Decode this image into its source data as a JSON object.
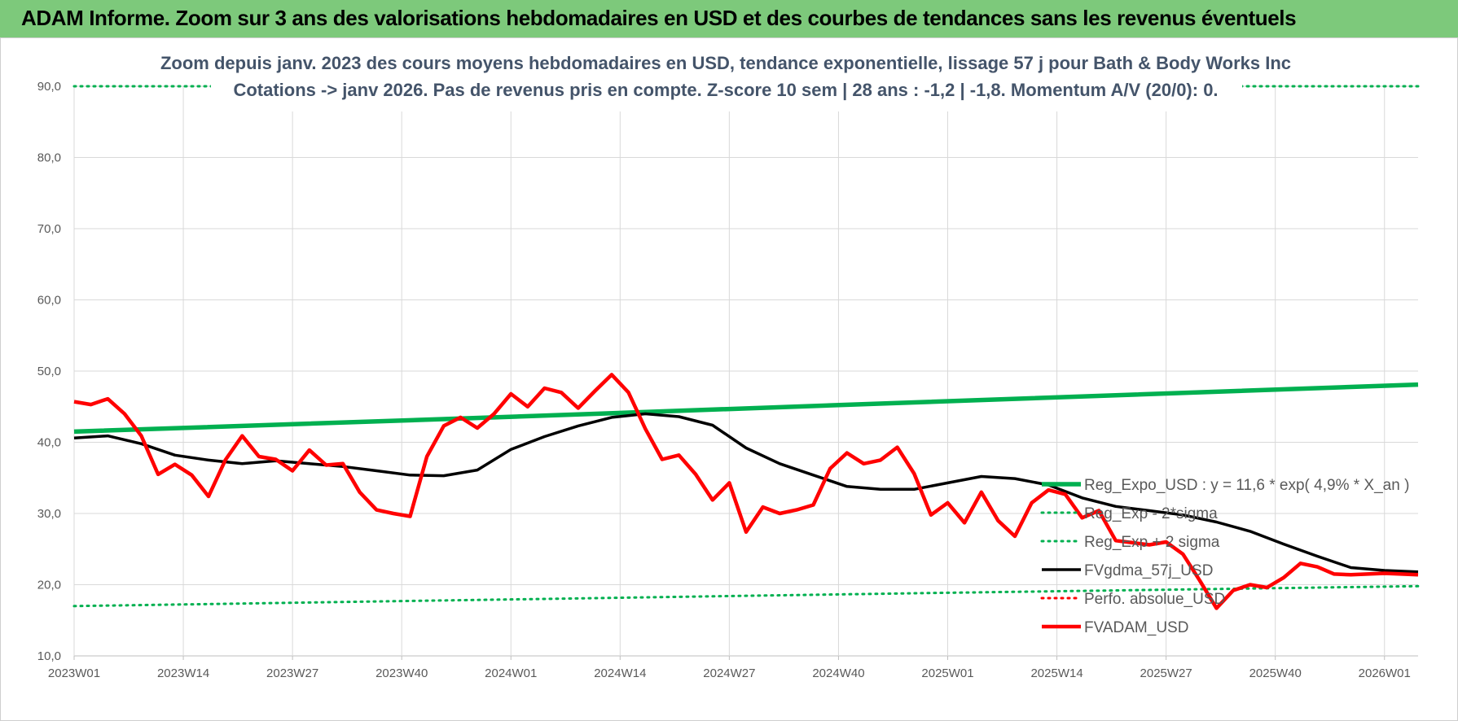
{
  "header": {
    "title": "ADAM Informe. Zoom sur 3 ans des valorisations hebdomadaires en USD et des courbes de tendances sans les revenus éventuels"
  },
  "chart_data": {
    "type": "line",
    "title": "Zoom depuis janv. 2023 des cours moyens hebdomadaires en USD, tendance exponentielle, lissage 57 j pour Bath & Body Works Inc",
    "subtitle": "Cotations -> janv 2026. Pas de revenus pris en compte. Z-score 10 sem | 28 ans : -1,2 | -1,8. Momentum A/V (20/0): 0.",
    "xlabel": "",
    "ylabel": "",
    "ylim": [
      10,
      90
    ],
    "yticks": [
      "10,0",
      "20,0",
      "30,0",
      "40,0",
      "50,0",
      "60,0",
      "70,0",
      "80,0",
      "90,0"
    ],
    "xticks": [
      "2023W01",
      "2023W14",
      "2023W27",
      "2023W40",
      "2024W01",
      "2024W14",
      "2024W27",
      "2024W40",
      "2025W01",
      "2025W14",
      "2025W27",
      "2025W40",
      "2026W01"
    ],
    "grid": true,
    "legend_position": "right",
    "colors": {
      "reg_expo": "#00b050",
      "sigma_bands": "#00b050",
      "fvgdma": "#000000",
      "perfo": "#ff0000",
      "fvadam": "#ff0000"
    },
    "series": [
      {
        "name": "Reg_Expo_USD : y = 11,6 * exp( 4,9% *  X_an )",
        "style": "solid-thick",
        "week_index": [
          0,
          50,
          100,
          160
        ],
        "values": [
          41.5,
          43.5,
          45.6,
          48.1
        ]
      },
      {
        "name": "Reg_Exp - 2*sigma",
        "style": "dotted",
        "week_index": [
          0,
          40,
          80,
          120,
          160
        ],
        "values": [
          90.0,
          90.0,
          90.0,
          90.0,
          90.0
        ]
      },
      {
        "name": "Reg_Exp + 2 sigma",
        "style": "dotted",
        "week_index": [
          0,
          50,
          100,
          160
        ],
        "values": [
          17.0,
          17.9,
          18.8,
          19.8
        ]
      },
      {
        "name": "FVgdma_57j_USD",
        "style": "solid",
        "week_index": [
          0,
          4,
          8,
          12,
          16,
          20,
          24,
          28,
          32,
          36,
          40,
          44,
          48,
          52,
          56,
          60,
          64,
          68,
          72,
          76,
          80,
          84,
          88,
          92,
          96,
          100,
          104,
          108,
          112,
          116,
          120,
          124,
          128,
          132,
          136,
          140,
          144,
          148,
          152,
          156,
          160
        ],
        "values": [
          40.6,
          40.9,
          39.8,
          38.2,
          37.5,
          37.0,
          37.4,
          37.0,
          36.6,
          36.0,
          35.4,
          35.3,
          36.1,
          39.0,
          40.8,
          42.3,
          43.5,
          44.0,
          43.6,
          42.4,
          39.2,
          37.0,
          35.4,
          33.8,
          33.4,
          33.4,
          34.3,
          35.2,
          34.9,
          34.0,
          32.2,
          31.0,
          30.4,
          29.8,
          28.8,
          27.5,
          25.7,
          24.0,
          22.4,
          22.0,
          21.8
        ]
      },
      {
        "name": "Perfo. absolue_USD",
        "style": "dotted",
        "week_index": [],
        "values": []
      },
      {
        "name": "FVADAM_USD",
        "style": "solid-thick",
        "week_index": [
          0,
          2,
          4,
          6,
          8,
          10,
          12,
          14,
          16,
          18,
          20,
          22,
          24,
          26,
          28,
          30,
          32,
          34,
          36,
          38,
          40,
          42,
          44,
          46,
          48,
          50,
          52,
          54,
          56,
          58,
          60,
          62,
          64,
          66,
          68,
          70,
          72,
          74,
          76,
          78,
          80,
          82,
          84,
          86,
          88,
          90,
          92,
          94,
          96,
          98,
          100,
          102,
          104,
          106,
          108,
          110,
          112,
          114,
          116,
          118,
          120,
          122,
          124,
          126,
          128,
          130,
          132,
          134,
          136,
          138,
          140,
          142,
          144,
          146,
          148,
          150,
          152,
          154,
          156,
          158,
          160
        ],
        "values": [
          45.7,
          45.3,
          46.1,
          44.0,
          40.9,
          35.5,
          36.9,
          35.4,
          32.4,
          37.5,
          40.9,
          38.0,
          37.6,
          36.0,
          38.9,
          36.8,
          37.0,
          33.0,
          30.5,
          30.0,
          29.6,
          38.0,
          42.3,
          43.5,
          42.0,
          44.0,
          46.8,
          45.0,
          47.6,
          47.0,
          44.8,
          47.2,
          49.5,
          47.0,
          41.9,
          37.6,
          38.2,
          35.5,
          31.9,
          34.3,
          27.4,
          30.9,
          30.0,
          30.5,
          31.2,
          36.3,
          38.5,
          37.0,
          37.5,
          39.3,
          35.6,
          29.8,
          31.5,
          28.7,
          33.0,
          29.0,
          26.8,
          31.5,
          33.3,
          32.7,
          29.4,
          30.4,
          26.2,
          25.9,
          25.6,
          26.0,
          24.3,
          20.6,
          16.7,
          19.2,
          20.0,
          19.6,
          21.0,
          23.0,
          22.5,
          21.5,
          21.4,
          21.5,
          21.6,
          21.5,
          21.4
        ]
      }
    ]
  }
}
